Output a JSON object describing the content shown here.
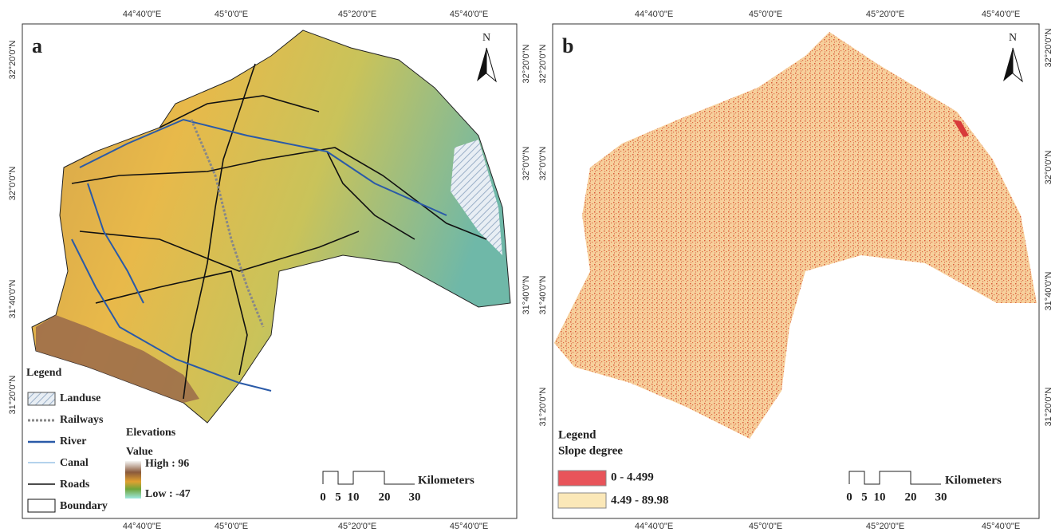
{
  "panels": [
    {
      "letter": "a",
      "north": "N",
      "top_labels": [
        "44°40'0\"E",
        "45°0'0\"E",
        "45°20'0\"E",
        "45°40'0\"E"
      ],
      "bottom_labels": [
        "44°40'0\"E",
        "45°0'0\"E",
        "45°20'0\"E",
        "45°40'0\"E"
      ],
      "left_labels": [
        "32°20'0\"N",
        "32°0'0\"N",
        "31°40'0\"N",
        "31°20'0\"N"
      ],
      "right_labels": [
        "32°20'0\"N",
        "32°0'0\"N",
        "31°40'0\"N"
      ],
      "legend": {
        "title": "Legend",
        "items": [
          "Landuse",
          "Railways",
          "River",
          "Canal",
          "Roads",
          "Boundary"
        ],
        "elevation_title": "Elevations",
        "value_title": "Value",
        "high": "High : 96",
        "low": "Low : -47"
      },
      "scale": {
        "ticks": [
          "0",
          "5",
          "10",
          "20",
          "30"
        ],
        "unit": "Kilometers"
      }
    },
    {
      "letter": "b",
      "north": "N",
      "top_labels": [
        "44°40'0\"E",
        "45°0'0\"E",
        "45°20'0\"E",
        "45°40'0\"E"
      ],
      "bottom_labels": [
        "44°40'0\"E",
        "45°0'0\"E",
        "45°20'0\"E",
        "45°40'0\"E"
      ],
      "left_labels": [
        "32°20'0\"N",
        "32°0'0\"N",
        "31°40'0\"N",
        "31°20'0\"N"
      ],
      "right_labels": [
        "32°20'0\"N",
        "32°0'0\"N",
        "31°40'0\"N",
        "31°20'0\"N"
      ],
      "legend": {
        "title": "Legend",
        "subtitle": "Slope degree",
        "items": [
          "0 - 4.499",
          "4.49 - 89.98"
        ]
      },
      "scale": {
        "ticks": [
          "0",
          "5",
          "10",
          "20",
          "30"
        ],
        "unit": "Kilometers"
      }
    }
  ]
}
